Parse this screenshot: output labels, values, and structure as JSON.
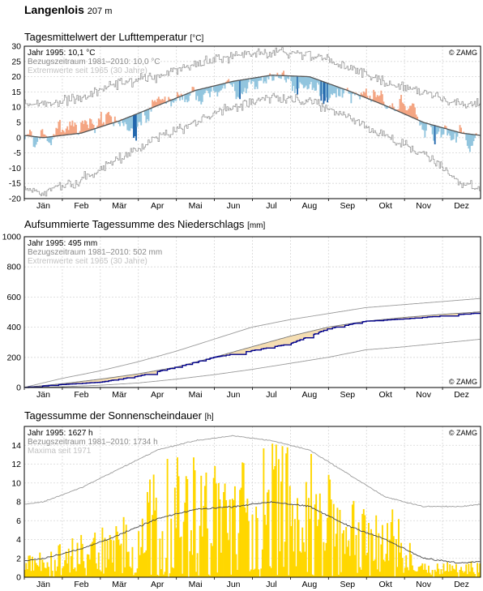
{
  "header": {
    "station": "Langenlois",
    "altitude": "207 m"
  },
  "months": [
    "Jän",
    "Feb",
    "Mär",
    "Apr",
    "Mai",
    "Jun",
    "Jul",
    "Aug",
    "Sep",
    "Okt",
    "Nov",
    "Dez"
  ],
  "copyright": "© ZAMG",
  "colors": {
    "warm_light": "#f4a582",
    "warm_dark": "#b2182b",
    "cold_light": "#92c5de",
    "cold_dark": "#2166ac",
    "normal_line": "#555555",
    "extreme_line": "#9a9a9a",
    "precip_line": "#00008b",
    "precip_fill": "#f5deb3",
    "sun_bar": "#ffd700"
  },
  "chart_data": [
    {
      "type": "bar",
      "title": "Tagesmittelwert der Lufttemperatur",
      "unit": "[°C]",
      "legend": {
        "year": "Jahr 1995: 10,1 °C",
        "reference": "Bezugszeitraum 1981–2010: 10,0 °C",
        "extremes": "Extremwerte seit 1965 (30 Jahre)"
      },
      "ylim": [
        -20,
        30
      ],
      "yticks": [
        -20,
        -15,
        -10,
        -5,
        0,
        5,
        10,
        15,
        20,
        25,
        30
      ],
      "normal_monthly": [
        0,
        1.5,
        5.5,
        10.5,
        15.5,
        18.5,
        20.5,
        20,
        15.5,
        10.5,
        5,
        1.5
      ],
      "year_anomaly_monthly": [
        -2,
        4,
        -1,
        1,
        1,
        -2,
        2,
        -1,
        -2,
        1,
        -1.5,
        -1
      ],
      "extreme_max_monthly": [
        11,
        13,
        18,
        20,
        24,
        27,
        28,
        27,
        23,
        18,
        15,
        11
      ],
      "extreme_min_monthly": [
        -18,
        -14,
        -7,
        0,
        5,
        10,
        13,
        12,
        7,
        0,
        -5,
        -15
      ]
    },
    {
      "type": "line",
      "title": "Aufsummierte Tagessumme des Niederschlags",
      "unit": "[mm]",
      "legend": {
        "year": "Jahr 1995: 495 mm",
        "reference": "Bezugszeitraum 1981–2010: 502 mm",
        "extremes": "Extremwerte seit 1965 (30 Jahre)"
      },
      "ylim": [
        0,
        1000
      ],
      "yticks": [
        0,
        200,
        400,
        600,
        800,
        1000
      ],
      "year_cumulative_monthly_end": [
        20,
        35,
        75,
        135,
        200,
        245,
        290,
        390,
        440,
        455,
        475,
        495
      ],
      "normal_cumulative_monthly_end": [
        25,
        55,
        90,
        135,
        200,
        270,
        340,
        400,
        440,
        465,
        485,
        502
      ],
      "max_cumulative_monthly_end": [
        60,
        110,
        170,
        240,
        320,
        400,
        450,
        490,
        530,
        550,
        570,
        590
      ],
      "min_cumulative_monthly_end": [
        5,
        15,
        30,
        55,
        85,
        120,
        160,
        200,
        250,
        270,
        295,
        320
      ]
    },
    {
      "type": "bar",
      "title": "Tagessumme der Sonnenscheindauer",
      "unit": "[h]",
      "legend": {
        "year": "Jahr 1995: 1627 h",
        "reference": "Bezugszeitraum 1981–2010: 1734 h",
        "extremes": "Maxima seit 1971"
      },
      "ylim": [
        0,
        16
      ],
      "yticks": [
        0,
        2,
        4,
        6,
        8,
        10,
        12,
        14
      ],
      "normal_monthly": [
        2,
        3,
        4.5,
        6.2,
        7.2,
        7.5,
        8,
        7.5,
        5.5,
        4,
        2,
        1.5
      ],
      "max_monthly": [
        8,
        9.5,
        11.5,
        13.5,
        14.5,
        15,
        14.5,
        13.5,
        11,
        8.5,
        7.5,
        7.5
      ],
      "year_monthly_mean": [
        1.5,
        2.5,
        3.5,
        6.5,
        7,
        6,
        9,
        7,
        4.5,
        4.5,
        1,
        0.8
      ]
    }
  ]
}
